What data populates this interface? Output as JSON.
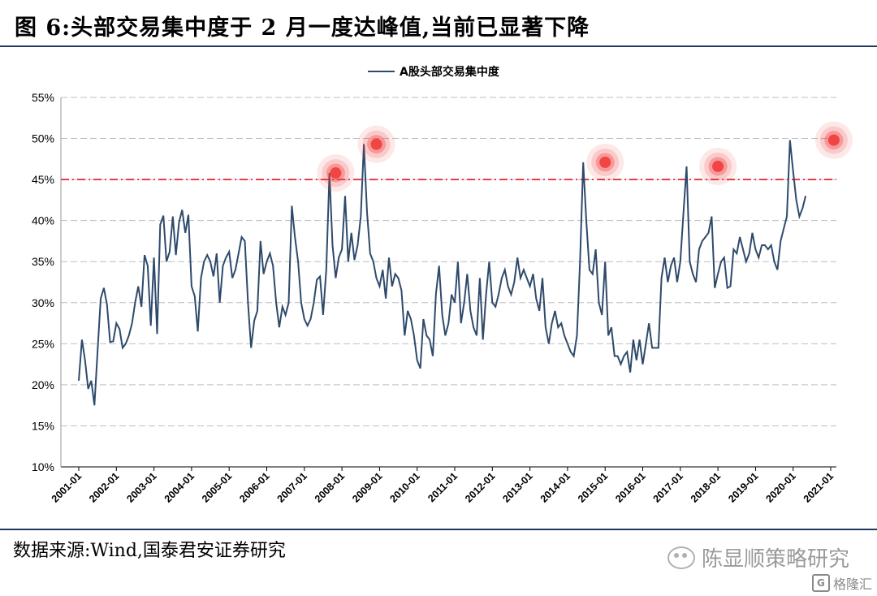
{
  "header": {
    "title": "图 6:头部交易集中度于 2 月一度达峰值,当前已显著下降"
  },
  "footer": {
    "source": "数据来源:Wind,国泰君安证券研究",
    "watermark": "陈显顺策略研究",
    "brand": "格隆汇"
  },
  "colors": {
    "line": "#2e4a6b",
    "threshold": "#e0141e",
    "peak": "#f04040",
    "grid": "#bfbfbf"
  },
  "chart_data": {
    "type": "line",
    "title": "",
    "xlabel": "",
    "ylabel": "",
    "legend": {
      "position": "top-center",
      "entries": [
        "A股头部交易集中度"
      ]
    },
    "ylim": [
      10,
      55
    ],
    "yticks": [
      "10%",
      "15%",
      "20%",
      "25%",
      "30%",
      "35%",
      "40%",
      "45%",
      "50%",
      "55%"
    ],
    "xticks": [
      "2001-01",
      "2002-01",
      "2003-01",
      "2004-01",
      "2005-01",
      "2006-01",
      "2007-01",
      "2008-01",
      "2009-01",
      "2010-01",
      "2011-01",
      "2012-01",
      "2013-01",
      "2014-01",
      "2015-01",
      "2016-01",
      "2017-01",
      "2018-01",
      "2019-01",
      "2020-01",
      "2021-01"
    ],
    "threshold": 45,
    "highlighted_peaks": [
      {
        "x": "2007-11",
        "y": 45.8
      },
      {
        "x": "2008-12",
        "y": 49.3
      },
      {
        "x": "2015-01",
        "y": 47.1
      },
      {
        "x": "2018-01",
        "y": 46.6
      },
      {
        "x": "2021-02",
        "y": 49.8
      }
    ],
    "series": [
      {
        "name": "A股头部交易集中度",
        "x_start": "2001-01",
        "frequency": "monthly",
        "values": [
          20.5,
          25.5,
          23.0,
          19.5,
          20.5,
          17.5,
          24.0,
          30.5,
          31.8,
          29.8,
          25.2,
          25.3,
          27.5,
          26.8,
          24.5,
          25.0,
          26.0,
          27.5,
          30.0,
          32.0,
          29.5,
          35.8,
          34.5,
          27.2,
          35.5,
          26.2,
          39.5,
          40.6,
          35.0,
          36.2,
          40.5,
          35.8,
          39.8,
          41.3,
          38.5,
          40.7,
          32.0,
          30.8,
          26.5,
          33.0,
          35.0,
          35.8,
          35.0,
          33.2,
          36.0,
          30.0,
          34.5,
          35.5,
          36.2,
          33.0,
          34.0,
          36.0,
          38.0,
          37.5,
          30.0,
          24.5,
          27.8,
          29.0,
          37.5,
          33.5,
          35.0,
          36.0,
          34.5,
          30.0,
          27.0,
          29.5,
          28.5,
          30.0,
          41.8,
          38.0,
          35.0,
          30.0,
          28.0,
          27.2,
          28.0,
          30.0,
          32.8,
          33.2,
          28.5,
          34.0,
          45.8,
          37.0,
          33.0,
          35.5,
          36.5,
          43.0,
          35.0,
          38.5,
          35.2,
          37.0,
          40.5,
          49.3,
          41.0,
          36.0,
          35.0,
          33.0,
          32.0,
          34.0,
          30.5,
          35.5,
          32.0,
          33.5,
          33.0,
          31.5,
          26.0,
          29.0,
          28.0,
          26.0,
          23.0,
          22.0,
          28.0,
          26.0,
          25.5,
          23.5,
          31.0,
          34.5,
          28.5,
          26.0,
          27.5,
          31.0,
          30.0,
          35.0,
          27.5,
          30.0,
          33.5,
          29.0,
          27.0,
          26.0,
          33.0,
          25.5,
          31.0,
          35.0,
          30.0,
          29.5,
          31.0,
          33.0,
          34.0,
          32.0,
          31.0,
          32.5,
          35.5,
          33.0,
          34.0,
          33.0,
          32.0,
          33.5,
          30.5,
          29.0,
          33.0,
          27.0,
          25.0,
          27.5,
          29.0,
          27.0,
          27.5,
          26.0,
          25.0,
          24.0,
          23.5,
          26.0,
          35.0,
          47.1,
          40.0,
          34.0,
          33.5,
          36.5,
          30.0,
          28.5,
          35.0,
          26.0,
          27.0,
          23.5,
          23.5,
          22.5,
          23.5,
          24.0,
          21.5,
          25.5,
          23.0,
          25.5,
          22.5,
          25.0,
          27.5,
          24.5,
          24.5,
          24.5,
          33.0,
          35.5,
          32.5,
          34.5,
          35.5,
          32.5,
          35.0,
          41.0,
          46.6,
          35.0,
          33.5,
          32.5,
          36.5,
          37.5,
          38.0,
          38.5,
          40.5,
          31.8,
          33.5,
          35.0,
          35.5,
          31.8,
          32.0,
          36.5,
          36.0,
          38.0,
          36.5,
          35.0,
          36.0,
          38.5,
          36.5,
          35.5,
          37.0,
          37.0,
          36.5,
          37.0,
          35.0,
          34.0,
          37.5,
          39.0,
          40.5,
          49.8,
          46.0,
          42.5,
          40.5,
          41.5,
          43.0
        ]
      }
    ]
  }
}
